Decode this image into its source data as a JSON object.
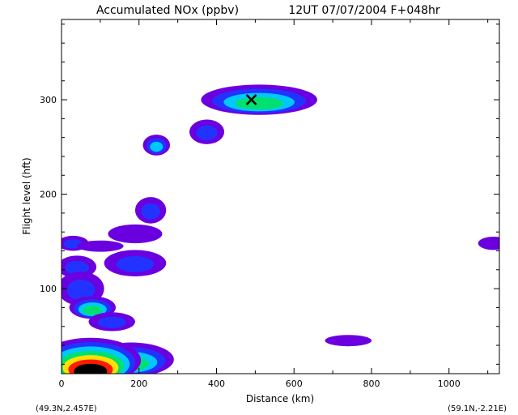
{
  "chart_data": {
    "type": "heatmap",
    "title": "Accumulated NOx  (ppbv)",
    "subtitle": "12UT 07/07/2004   F+048hr",
    "xlabel": "Distance  (km)",
    "ylabel": "Flight level  (hft)",
    "xlim": [
      0,
      1130
    ],
    "ylim": [
      10,
      385
    ],
    "xticks": [
      0,
      200,
      400,
      600,
      800,
      1000
    ],
    "yticks": [
      100,
      200,
      300
    ],
    "xtick_labels": [
      "0",
      "200",
      "400",
      "600",
      "800",
      "1000"
    ],
    "ytick_labels": [
      "100",
      "200",
      "300"
    ],
    "start_label": "(49.3N,2.457E)",
    "end_label": "(59.1N,-2.21E)",
    "marker": {
      "symbol": "x",
      "x": 490,
      "y": 300
    },
    "grid": false,
    "colors": {
      "level1": "#6a00e0",
      "level2": "#2233ff",
      "level3": "#00c8ff",
      "level4": "#00e070",
      "level5": "#ffe000",
      "level6": "#ff1a00",
      "level7": "#000000"
    },
    "blobs": [
      {
        "x": 510,
        "y": 300,
        "rx": 150,
        "ry": 16,
        "levels": 4
      },
      {
        "x": 375,
        "y": 266,
        "rx": 45,
        "ry": 13,
        "levels": 2
      },
      {
        "x": 245,
        "y": 252,
        "rx": 35,
        "ry": 11,
        "levels": 3
      },
      {
        "x": 230,
        "y": 183,
        "rx": 40,
        "ry": 14,
        "levels": 2
      },
      {
        "x": 190,
        "y": 158,
        "rx": 70,
        "ry": 10,
        "levels": 1
      },
      {
        "x": 30,
        "y": 148,
        "rx": 40,
        "ry": 8,
        "levels": 2
      },
      {
        "x": 100,
        "y": 145,
        "rx": 60,
        "ry": 6,
        "levels": 1
      },
      {
        "x": 1115,
        "y": 148,
        "rx": 40,
        "ry": 7,
        "levels": 1
      },
      {
        "x": 190,
        "y": 127,
        "rx": 80,
        "ry": 14,
        "levels": 2
      },
      {
        "x": 40,
        "y": 123,
        "rx": 50,
        "ry": 12,
        "levels": 2
      },
      {
        "x": 50,
        "y": 100,
        "rx": 60,
        "ry": 18,
        "levels": 2
      },
      {
        "x": 80,
        "y": 80,
        "rx": 60,
        "ry": 12,
        "levels": 4
      },
      {
        "x": 130,
        "y": 65,
        "rx": 60,
        "ry": 10,
        "levels": 2
      },
      {
        "x": 740,
        "y": 45,
        "rx": 60,
        "ry": 6,
        "levels": 1
      },
      {
        "x": 180,
        "y": 25,
        "rx": 110,
        "ry": 18,
        "levels": 4
      },
      {
        "x": 75,
        "y": 24,
        "rx": 130,
        "ry": 24,
        "levels": 7
      }
    ]
  }
}
